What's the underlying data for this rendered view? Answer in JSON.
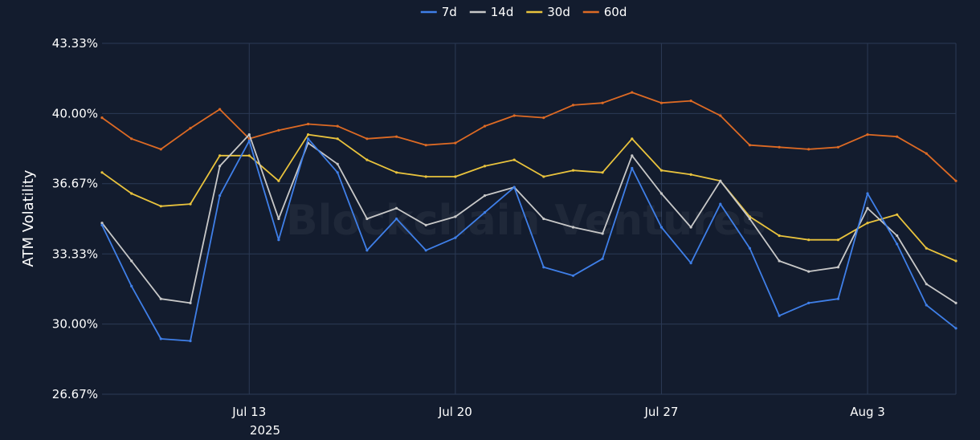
{
  "chart_data": {
    "type": "line",
    "ylabel": "ATM Volatility",
    "watermark": "Blockchain Ventures",
    "x_ticks": [
      "Jul 13",
      "Jul 20",
      "Jul 27",
      "Aug 3"
    ],
    "x_tick_year": "2025",
    "x_tick_dates": [
      "2025-07-13",
      "2025-07-20",
      "2025-07-27",
      "2025-08-03"
    ],
    "x_range": [
      "2025-07-08",
      "2025-08-06"
    ],
    "y_ticks": [
      "26.67%",
      "30.00%",
      "33.33%",
      "36.67%",
      "40.00%",
      "43.33%"
    ],
    "y_tick_values": [
      26.67,
      30.0,
      33.33,
      36.67,
      40.0,
      43.33
    ],
    "ylim": [
      26.67,
      43.33
    ],
    "grid": true,
    "legend_position": "top-center",
    "series": [
      {
        "name": "7d",
        "color": "#3f7fe8",
        "x": [
          "2025-07-08",
          "2025-07-09",
          "2025-07-10",
          "2025-07-11",
          "2025-07-12",
          "2025-07-13",
          "2025-07-14",
          "2025-07-15",
          "2025-07-16",
          "2025-07-17",
          "2025-07-18",
          "2025-07-19",
          "2025-07-20",
          "2025-07-21",
          "2025-07-22",
          "2025-07-23",
          "2025-07-24",
          "2025-07-25",
          "2025-07-26",
          "2025-07-27",
          "2025-07-28",
          "2025-07-29",
          "2025-07-30",
          "2025-07-31",
          "2025-08-01",
          "2025-08-02",
          "2025-08-03",
          "2025-08-04",
          "2025-08-05",
          "2025-08-06"
        ],
        "values": [
          34.7,
          31.8,
          29.3,
          29.2,
          36.1,
          38.7,
          34.0,
          38.8,
          37.2,
          33.5,
          35.0,
          33.5,
          34.1,
          35.3,
          36.5,
          32.7,
          32.3,
          33.1,
          37.4,
          34.6,
          32.9,
          35.7,
          33.6,
          30.4,
          31.0,
          31.2,
          36.2,
          33.8,
          30.9,
          29.8
        ]
      },
      {
        "name": "14d",
        "color": "#c8c8c8",
        "x": [
          "2025-07-08",
          "2025-07-09",
          "2025-07-10",
          "2025-07-11",
          "2025-07-12",
          "2025-07-13",
          "2025-07-14",
          "2025-07-15",
          "2025-07-16",
          "2025-07-17",
          "2025-07-18",
          "2025-07-19",
          "2025-07-20",
          "2025-07-21",
          "2025-07-22",
          "2025-07-23",
          "2025-07-24",
          "2025-07-25",
          "2025-07-26",
          "2025-07-27",
          "2025-07-28",
          "2025-07-29",
          "2025-07-30",
          "2025-07-31",
          "2025-08-01",
          "2025-08-02",
          "2025-08-03",
          "2025-08-04",
          "2025-08-05",
          "2025-08-06"
        ],
        "values": [
          34.8,
          33.0,
          31.2,
          31.0,
          37.5,
          39.0,
          35.0,
          38.6,
          37.6,
          35.0,
          35.5,
          34.7,
          35.1,
          36.1,
          36.5,
          35.0,
          34.6,
          34.3,
          38.0,
          36.2,
          34.6,
          36.8,
          35.0,
          33.0,
          32.5,
          32.7,
          35.5,
          34.2,
          31.9,
          31.0
        ]
      },
      {
        "name": "30d",
        "color": "#e9c33d",
        "x": [
          "2025-07-08",
          "2025-07-09",
          "2025-07-10",
          "2025-07-11",
          "2025-07-12",
          "2025-07-13",
          "2025-07-14",
          "2025-07-15",
          "2025-07-16",
          "2025-07-17",
          "2025-07-18",
          "2025-07-19",
          "2025-07-20",
          "2025-07-21",
          "2025-07-22",
          "2025-07-23",
          "2025-07-24",
          "2025-07-25",
          "2025-07-26",
          "2025-07-27",
          "2025-07-28",
          "2025-07-29",
          "2025-07-30",
          "2025-07-31",
          "2025-08-01",
          "2025-08-02",
          "2025-08-03",
          "2025-08-04",
          "2025-08-05",
          "2025-08-06"
        ],
        "values": [
          37.2,
          36.2,
          35.6,
          35.7,
          38.0,
          38.0,
          36.8,
          39.0,
          38.8,
          37.8,
          37.2,
          37.0,
          37.0,
          37.5,
          37.8,
          37.0,
          37.3,
          37.2,
          38.8,
          37.3,
          37.1,
          36.8,
          35.1,
          34.2,
          34.0,
          34.0,
          34.8,
          35.2,
          33.6,
          33.0
        ]
      },
      {
        "name": "60d",
        "color": "#dd6a24",
        "x": [
          "2025-07-08",
          "2025-07-09",
          "2025-07-10",
          "2025-07-11",
          "2025-07-12",
          "2025-07-13",
          "2025-07-14",
          "2025-07-15",
          "2025-07-16",
          "2025-07-17",
          "2025-07-18",
          "2025-07-19",
          "2025-07-20",
          "2025-07-21",
          "2025-07-22",
          "2025-07-23",
          "2025-07-24",
          "2025-07-25",
          "2025-07-26",
          "2025-07-27",
          "2025-07-28",
          "2025-07-29",
          "2025-07-30",
          "2025-07-31",
          "2025-08-01",
          "2025-08-02",
          "2025-08-03",
          "2025-08-04",
          "2025-08-05",
          "2025-08-06"
        ],
        "values": [
          39.8,
          38.8,
          38.3,
          39.3,
          40.2,
          38.8,
          39.2,
          39.5,
          39.4,
          38.8,
          38.9,
          38.5,
          38.6,
          39.4,
          39.9,
          39.8,
          40.4,
          40.5,
          41.0,
          40.5,
          40.6,
          39.9,
          38.5,
          38.4,
          38.3,
          38.4,
          39.0,
          38.9,
          38.1,
          36.8
        ]
      }
    ]
  }
}
